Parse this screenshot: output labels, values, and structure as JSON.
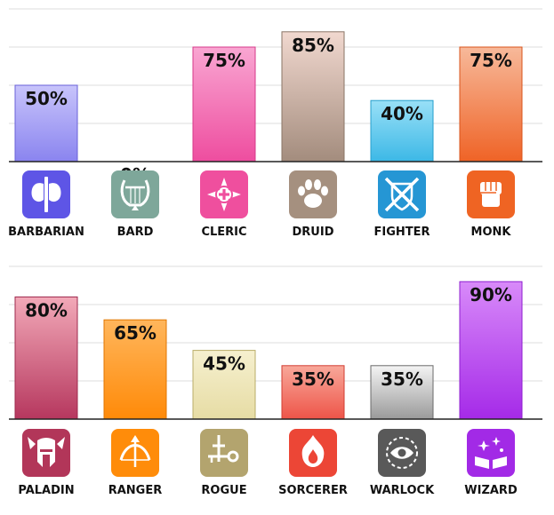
{
  "chart_data": [
    {
      "type": "bar",
      "categories": [
        "BARBARIAN",
        "BARD",
        "CLERIC",
        "DRUID",
        "FIGHTER",
        "MONK"
      ],
      "values": [
        50,
        0,
        75,
        85,
        40,
        75
      ],
      "labels": [
        "50%",
        "0%",
        "75%",
        "85%",
        "40%",
        "75%"
      ],
      "ylim": [
        0,
        100
      ],
      "grid": true,
      "colors": [
        {
          "top": "#c8c4fb",
          "bottom": "#8a84ef",
          "border": "#6a62d8"
        },
        {
          "top": "#cfe6dc",
          "bottom": "#8fb4a6",
          "border": "#6e9486"
        },
        {
          "top": "#f9a6d2",
          "bottom": "#ee4d9f",
          "border": "#d63a8a"
        },
        {
          "top": "#f1d8cf",
          "bottom": "#a38c7d",
          "border": "#8a7566"
        },
        {
          "top": "#99e0f7",
          "bottom": "#3cb8e6",
          "border": "#259fcc"
        },
        {
          "top": "#f7b99a",
          "bottom": "#ef6326",
          "border": "#d8541c"
        }
      ],
      "icons": [
        {
          "name": "battle-axe-icon",
          "bg": "#5e55e6"
        },
        {
          "name": "lyre-icon",
          "bg": "#7ea79a"
        },
        {
          "name": "holy-symbol-icon",
          "bg": "#ef4f9e"
        },
        {
          "name": "paw-print-icon",
          "bg": "#a5907f"
        },
        {
          "name": "crossed-swords-shield-icon",
          "bg": "#2596d4"
        },
        {
          "name": "fist-icon",
          "bg": "#ef6423"
        }
      ]
    },
    {
      "type": "bar",
      "categories": [
        "PALADIN",
        "RANGER",
        "ROGUE",
        "SORCERER",
        "WARLOCK",
        "WIZARD"
      ],
      "values": [
        80,
        65,
        45,
        35,
        35,
        90
      ],
      "labels": [
        "80%",
        "65%",
        "45%",
        "35%",
        "35%",
        "90%"
      ],
      "ylim": [
        0,
        100
      ],
      "grid": true,
      "colors": [
        {
          "top": "#f2a9b8",
          "bottom": "#b6375e",
          "border": "#9e2a4e"
        },
        {
          "top": "#ffb65c",
          "bottom": "#ff8a08",
          "border": "#e07600"
        },
        {
          "top": "#f6f0cf",
          "bottom": "#e6dca4",
          "border": "#b9ac68"
        },
        {
          "top": "#f8a89a",
          "bottom": "#ee5448",
          "border": "#d23d32"
        },
        {
          "top": "#f4f4f4",
          "bottom": "#9a9a9a",
          "border": "#6b6b6b"
        },
        {
          "top": "#d88af9",
          "bottom": "#a52ae8",
          "border": "#8f1fd0"
        }
      ],
      "icons": [
        {
          "name": "winged-helmet-icon",
          "bg": "#b23659"
        },
        {
          "name": "bow-and-arrow-icon",
          "bg": "#ff8c0a"
        },
        {
          "name": "dagger-and-key-icon",
          "bg": "#b3a46e"
        },
        {
          "name": "flame-burst-icon",
          "bg": "#ec4636"
        },
        {
          "name": "eye-sigil-icon",
          "bg": "#595959"
        },
        {
          "name": "spellbook-icon",
          "bg": "#a22ae6"
        }
      ]
    }
  ]
}
